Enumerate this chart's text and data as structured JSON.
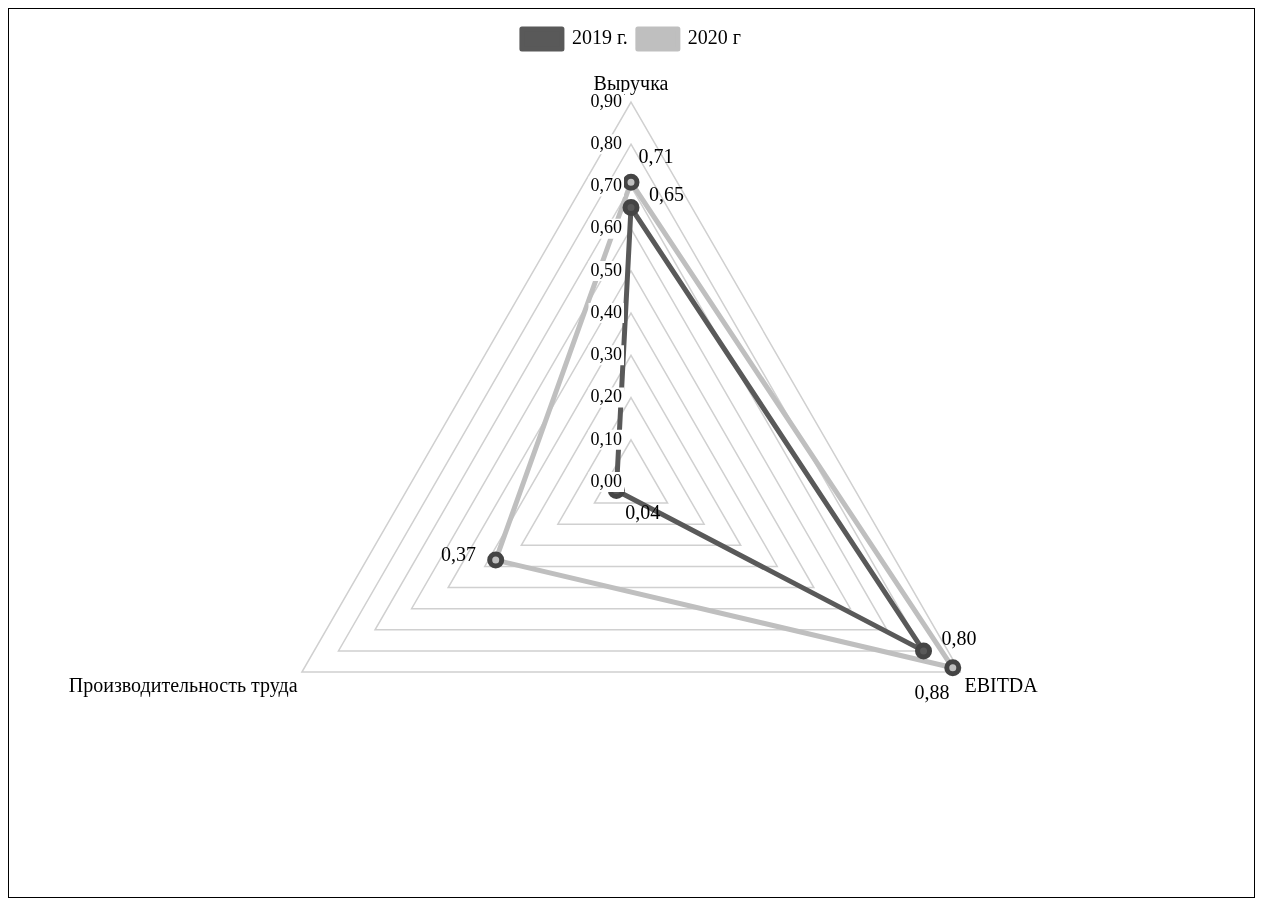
{
  "chart_data": {
    "type": "radar",
    "categories": [
      "Выручка",
      "EBITDA",
      "Производительность труда"
    ],
    "series": [
      {
        "name": "2019 г.",
        "color": "#595959",
        "values": [
          0.65,
          0.8,
          0.04
        ],
        "value_labels": [
          "0,65",
          "0,80",
          "0,04"
        ]
      },
      {
        "name": "2020 г",
        "color": "#bfbfbf",
        "values": [
          0.71,
          0.88,
          0.37
        ],
        "value_labels": [
          "0,71",
          "0,88",
          "0,37"
        ]
      }
    ],
    "ylim": [
      0,
      0.9
    ],
    "yticks": [
      {
        "value": 0,
        "label": "0,00"
      },
      {
        "value": 0.1,
        "label": "0,10"
      },
      {
        "value": 0.2,
        "label": "0,20"
      },
      {
        "value": 0.3,
        "label": "0,30"
      },
      {
        "value": 0.4,
        "label": "0,40"
      },
      {
        "value": 0.5,
        "label": "0,50"
      },
      {
        "value": 0.6,
        "label": "0,60"
      },
      {
        "value": 0.7,
        "label": "0,70"
      },
      {
        "value": 0.8,
        "label": "0,80"
      },
      {
        "value": 0.9,
        "label": "0,90"
      }
    ],
    "grid": true,
    "legend": "top",
    "marker": "circle",
    "line_style": "solid"
  }
}
